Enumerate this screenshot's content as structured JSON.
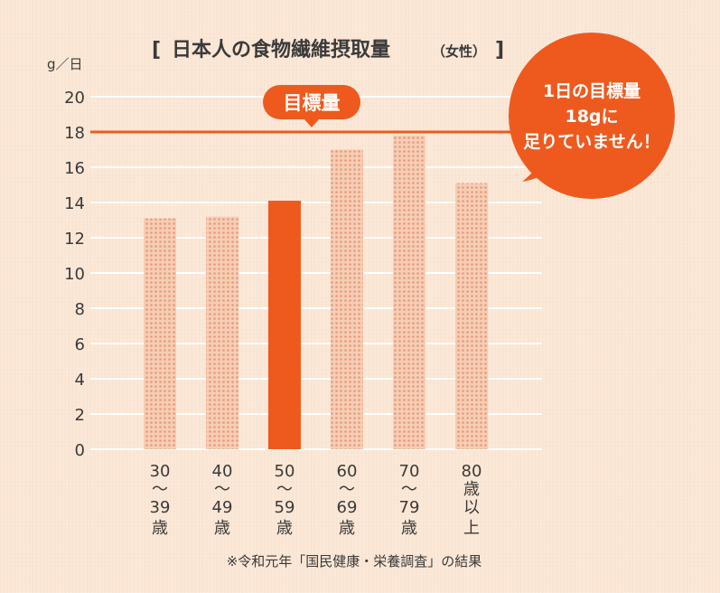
{
  "chart_data": {
    "type": "bar",
    "title": "日本人の食物繊維摂取量",
    "subtitle": "（女性）",
    "ylabel": "g／日",
    "ylim": [
      0,
      20
    ],
    "yticks": [
      0,
      2,
      4,
      6,
      8,
      10,
      12,
      14,
      16,
      18,
      20
    ],
    "categories": [
      "30〜39歳",
      "40〜49歳",
      "50〜59歳",
      "60〜69歳",
      "70〜79歳",
      "80歳以上"
    ],
    "category_labels": [
      [
        "30",
        "〜",
        "39",
        "歳"
      ],
      [
        "40",
        "〜",
        "49",
        "歳"
      ],
      [
        "50",
        "〜",
        "59",
        "歳"
      ],
      [
        "60",
        "〜",
        "69",
        "歳"
      ],
      [
        "70",
        "〜",
        "79",
        "歳"
      ],
      [
        "80",
        "歳",
        "以",
        "上"
      ]
    ],
    "values": [
      13.1,
      13.2,
      14.1,
      17.0,
      17.8,
      15.1
    ],
    "highlight_index": 2,
    "target": {
      "value": 18,
      "label": "目標量"
    },
    "callout": [
      "1日の目標量",
      "18gに",
      "足りていません！"
    ],
    "note": "※令和元年「国民健康・栄養調査」の結果"
  },
  "colors": {
    "accent": "#ee5a1e",
    "bar_dot": "#e79a7a",
    "bar_fill": "#f6cdb5",
    "grid": "#ffffff",
    "text": "#3a3a3a"
  }
}
